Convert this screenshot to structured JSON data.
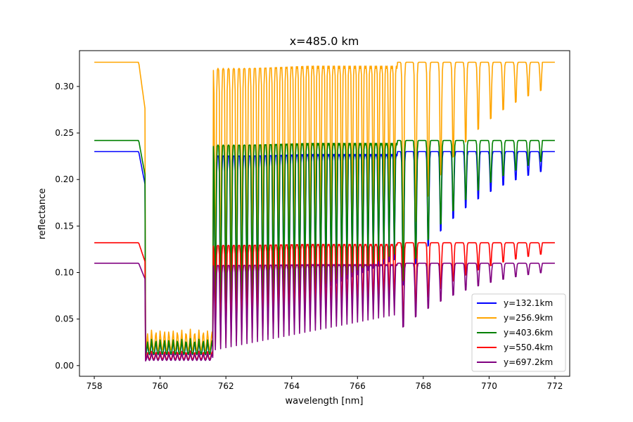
{
  "chart_data": {
    "type": "line",
    "title": "x=485.0 km",
    "xlabel": "wavelength [nm]",
    "ylabel": "reflectance",
    "xlim": [
      757.55,
      772.45
    ],
    "ylim": [
      -0.0115,
      0.3385
    ],
    "xticks": [
      758,
      760,
      762,
      764,
      766,
      768,
      770,
      772
    ],
    "xtick_labels": [
      "758",
      "760",
      "762",
      "764",
      "766",
      "768",
      "770",
      "772"
    ],
    "yticks": [
      0.0,
      0.05,
      0.1,
      0.15,
      0.2,
      0.25,
      0.3
    ],
    "ytick_labels": [
      "0.00",
      "0.05",
      "0.10",
      "0.15",
      "0.20",
      "0.25",
      "0.30"
    ],
    "grid": false,
    "legend_position": "lower-right",
    "continuum_note": "each series is flat at its continuum level outside the O2 A-band (759.5–767 nm) with narrow absorption lines to ~772 nm",
    "series": [
      {
        "name": "y=132.1km",
        "color": "#0000ff",
        "continuum": 0.23
      },
      {
        "name": "y=256.9km",
        "color": "#ffa500",
        "continuum": 0.326
      },
      {
        "name": "y=403.6km",
        "color": "#008000",
        "continuum": 0.242
      },
      {
        "name": "y=550.4km",
        "color": "#ff0000",
        "continuum": 0.132
      },
      {
        "name": "y=697.2km",
        "color": "#800080",
        "continuum": 0.11
      }
    ],
    "series_samples": {
      "x": [
        758.0,
        759.0,
        759.4,
        759.6,
        760.0,
        760.5,
        761.0,
        761.5,
        762.0,
        762.2,
        762.6,
        763.0,
        763.4,
        763.8,
        764.2,
        764.6,
        765.0,
        765.4,
        765.8,
        766.2,
        766.6,
        767.0,
        767.4,
        767.8,
        768.2,
        768.6,
        769.0,
        769.6,
        770.2,
        770.8,
        771.4,
        772.0
      ],
      "y=132.1km": [
        0.23,
        0.229,
        0.225,
        0.06,
        0.02,
        0.008,
        0.012,
        0.04,
        0.209,
        0.19,
        0.11,
        0.16,
        0.16,
        0.18,
        0.17,
        0.19,
        0.2,
        0.205,
        0.21,
        0.215,
        0.175,
        0.215,
        0.22,
        0.225,
        0.228,
        0.228,
        0.229,
        0.228,
        0.228,
        0.229,
        0.229,
        0.229
      ],
      "y=256.9km": [
        0.326,
        0.325,
        0.318,
        0.08,
        0.035,
        0.015,
        0.02,
        0.06,
        0.305,
        0.29,
        0.18,
        0.24,
        0.24,
        0.26,
        0.265,
        0.29,
        0.3,
        0.305,
        0.31,
        0.315,
        0.3,
        0.31,
        0.32,
        0.322,
        0.325,
        0.324,
        0.325,
        0.325,
        0.324,
        0.325,
        0.325,
        0.325
      ],
      "y=403.6km": [
        0.242,
        0.242,
        0.238,
        0.1,
        0.04,
        0.025,
        0.03,
        0.06,
        0.226,
        0.21,
        0.16,
        0.18,
        0.18,
        0.2,
        0.205,
        0.215,
        0.22,
        0.225,
        0.23,
        0.232,
        0.22,
        0.238,
        0.24,
        0.24,
        0.241,
        0.241,
        0.241,
        0.24,
        0.24,
        0.24,
        0.24,
        0.24
      ],
      "y=550.4km": [
        0.132,
        0.132,
        0.13,
        0.05,
        0.025,
        0.015,
        0.018,
        0.035,
        0.12,
        0.115,
        0.09,
        0.1,
        0.1,
        0.11,
        0.11,
        0.115,
        0.12,
        0.123,
        0.125,
        0.127,
        0.12,
        0.128,
        0.13,
        0.131,
        0.131,
        0.131,
        0.131,
        0.131,
        0.131,
        0.131,
        0.131,
        0.131
      ],
      "y=697.2km": [
        0.11,
        0.11,
        0.108,
        0.03,
        0.015,
        0.005,
        0.008,
        0.02,
        0.1,
        0.095,
        0.07,
        0.08,
        0.085,
        0.09,
        0.09,
        0.095,
        0.1,
        0.102,
        0.104,
        0.106,
        0.1,
        0.106,
        0.108,
        0.109,
        0.109,
        0.109,
        0.109,
        0.109,
        0.109,
        0.109,
        0.109,
        0.109
      ]
    }
  }
}
